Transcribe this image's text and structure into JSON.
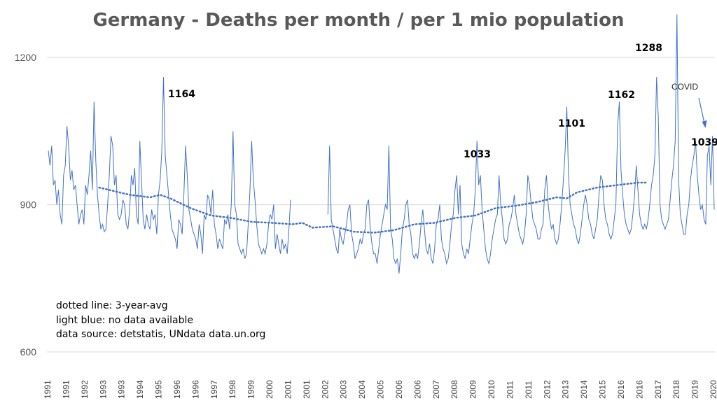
{
  "chart_data": {
    "type": "line",
    "title": "Germany - Deaths per month / per 1 mio population",
    "ylim": [
      600,
      1300
    ],
    "yticks": [
      600,
      900,
      1200
    ],
    "grid": true,
    "xlabels": [
      "1991",
      "1991",
      "1992",
      "1993",
      "1993",
      "1994",
      "1995",
      "1996",
      "1996",
      "1997",
      "1998",
      "1999",
      "2000",
      "2001",
      "2001",
      "2002",
      "2003",
      "2004",
      "2005",
      "2006",
      "2006",
      "2007",
      "2008",
      "2009",
      "2010",
      "2011",
      "2011",
      "2012",
      "2013",
      "2014",
      "2015",
      "2016",
      "2016",
      "2017",
      "2018",
      "2019",
      "2020"
    ],
    "x_start": 1991,
    "series": [
      {
        "name": "deaths per month",
        "color": "#4472c4",
        "values": [
          1010,
          980,
          1020,
          940,
          950,
          900,
          930,
          880,
          860,
          960,
          980,
          1060,
          1020,
          950,
          970,
          930,
          940,
          900,
          860,
          880,
          890,
          860,
          940,
          920,
          960,
          1010,
          930,
          1110,
          990,
          920,
          880,
          850,
          860,
          845,
          850,
          900,
          960,
          1040,
          1020,
          940,
          960,
          880,
          870,
          880,
          910,
          900,
          860,
          850,
          890,
          960,
          940,
          975,
          880,
          860,
          1030,
          950,
          870,
          850,
          880,
          860,
          850,
          890,
          870,
          880,
          840,
          920,
          950,
          1010,
          1160,
          1000,
          960,
          920,
          880,
          850,
          840,
          830,
          810,
          870,
          860,
          840,
          920,
          1020,
          960,
          890,
          870,
          850,
          840,
          830,
          810,
          860,
          840,
          800,
          880,
          870,
          920,
          910,
          880,
          930,
          860,
          840,
          810,
          830,
          820,
          810,
          870,
          860,
          880,
          850,
          900,
          1050,
          900,
          880,
          820,
          810,
          800,
          810,
          790,
          800,
          860,
          930,
          1030,
          950,
          910,
          860,
          820,
          810,
          800,
          810,
          800,
          820,
          860,
          880,
          870,
          900,
          810,
          840,
          820,
          800,
          830,
          810,
          820,
          800,
          850,
          910,
          null,
          null,
          null,
          null,
          null,
          null,
          null,
          null,
          null,
          null,
          null,
          null,
          null,
          null,
          null,
          null,
          null,
          null,
          null,
          null,
          null,
          880,
          1020,
          870,
          850,
          830,
          810,
          800,
          850,
          830,
          820,
          840,
          860,
          890,
          900,
          840,
          820,
          790,
          800,
          810,
          830,
          820,
          840,
          850,
          900,
          910,
          850,
          820,
          800,
          800,
          780,
          810,
          840,
          860,
          880,
          900,
          890,
          1020,
          850,
          830,
          790,
          780,
          790,
          760,
          800,
          850,
          870,
          900,
          910,
          860,
          840,
          800,
          790,
          800,
          790,
          820,
          860,
          890,
          850,
          810,
          800,
          820,
          790,
          780,
          810,
          860,
          870,
          900,
          830,
          810,
          800,
          780,
          790,
          820,
          860,
          880,
          930,
          960,
          880,
          940,
          820,
          800,
          790,
          810,
          800,
          830,
          860,
          880,
          930,
          1030,
          940,
          960,
          890,
          850,
          810,
          790,
          780,
          800,
          830,
          850,
          870,
          880,
          960,
          900,
          870,
          830,
          820,
          830,
          860,
          870,
          890,
          920,
          880,
          860,
          840,
          830,
          820,
          840,
          880,
          960,
          940,
          900,
          870,
          860,
          850,
          830,
          830,
          850,
          860,
          930,
          960,
          900,
          870,
          850,
          860,
          830,
          820,
          830,
          860,
          900,
          950,
          1010,
          1100,
          960,
          900,
          880,
          860,
          850,
          830,
          820,
          840,
          870,
          900,
          920,
          900,
          870,
          860,
          840,
          830,
          850,
          870,
          920,
          960,
          950,
          900,
          870,
          860,
          840,
          830,
          840,
          870,
          900,
          1060,
          1110,
          970,
          920,
          880,
          860,
          850,
          840,
          850,
          880,
          920,
          980,
          930,
          880,
          860,
          850,
          860,
          850,
          870,
          900,
          940,
          960,
          1000,
          1160,
          1080,
          900,
          870,
          860,
          850,
          860,
          870,
          910,
          950,
          980,
          1030,
          1288,
          950,
          880,
          860,
          840,
          840,
          880,
          900,
          950,
          980,
          1000,
          1030,
          960,
          920,
          890,
          900,
          870,
          860,
          1000,
          1020,
          940,
          1040,
          890
        ],
        "light_gap": [
          149,
          171
        ]
      },
      {
        "name": "3-year-avg",
        "style": "dotted",
        "color": "#4472c4",
        "points": [
          [
            1993.5,
            935
          ],
          [
            1995,
            920
          ],
          [
            1996,
            915
          ],
          [
            1996.5,
            920
          ],
          [
            1997,
            913
          ],
          [
            1998,
            893
          ],
          [
            1999,
            878
          ],
          [
            2000,
            873
          ],
          [
            2001,
            865
          ],
          [
            2002,
            863
          ],
          [
            2003,
            860
          ],
          [
            2003.5,
            863
          ],
          [
            2004,
            853
          ],
          [
            2005,
            856
          ],
          [
            2006,
            845
          ],
          [
            2007,
            843
          ],
          [
            2008,
            848
          ],
          [
            2009,
            860
          ],
          [
            2010,
            863
          ],
          [
            2011,
            873
          ],
          [
            2012,
            878
          ],
          [
            2013,
            893
          ],
          [
            2014,
            898
          ],
          [
            2015,
            905
          ],
          [
            2016,
            915
          ],
          [
            2016.5,
            913
          ],
          [
            2017,
            925
          ],
          [
            2018,
            935
          ],
          [
            2019,
            940
          ],
          [
            2020,
            945
          ],
          [
            2020.5,
            945
          ]
        ]
      }
    ],
    "annotations": [
      {
        "label": "1164",
        "value": 1164
      },
      {
        "label": "1033",
        "value": 1033
      },
      {
        "label": "1101",
        "value": 1101
      },
      {
        "label": "1162",
        "value": 1162
      },
      {
        "label": "1288",
        "value": 1288
      },
      {
        "label": "1039",
        "value": 1039
      },
      {
        "label": "COVID"
      }
    ],
    "notes": [
      "dotted line: 3-year-avg",
      "light blue: no  data available",
      "data source: detstatis, UNdata data.un.org"
    ]
  }
}
